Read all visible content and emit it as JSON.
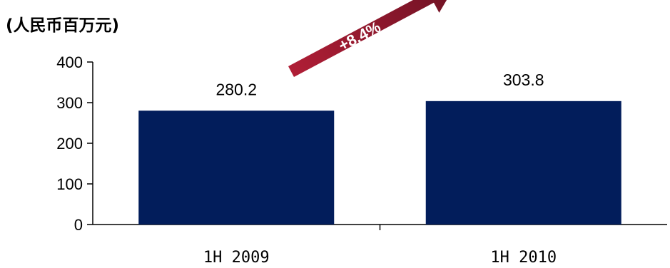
{
  "unit_label": "(人民币百万元)",
  "growth_label": "+8.4%",
  "colors": {
    "bar": "#021d5b",
    "arrow": "#8d1a2e",
    "axis": "#000000"
  },
  "chart_data": {
    "type": "bar",
    "categories": [
      "1H 2009",
      "1H 2010"
    ],
    "values": [
      280.2,
      303.8
    ],
    "data_labels": [
      "280.2",
      "303.8"
    ],
    "ylim": [
      0,
      400
    ],
    "yticks": [
      0,
      100,
      200,
      300,
      400
    ],
    "ytick_labels": [
      "0",
      "100",
      "200",
      "300",
      "400"
    ],
    "xlabel": "",
    "ylabel": "",
    "grid": false,
    "legend": "none"
  }
}
